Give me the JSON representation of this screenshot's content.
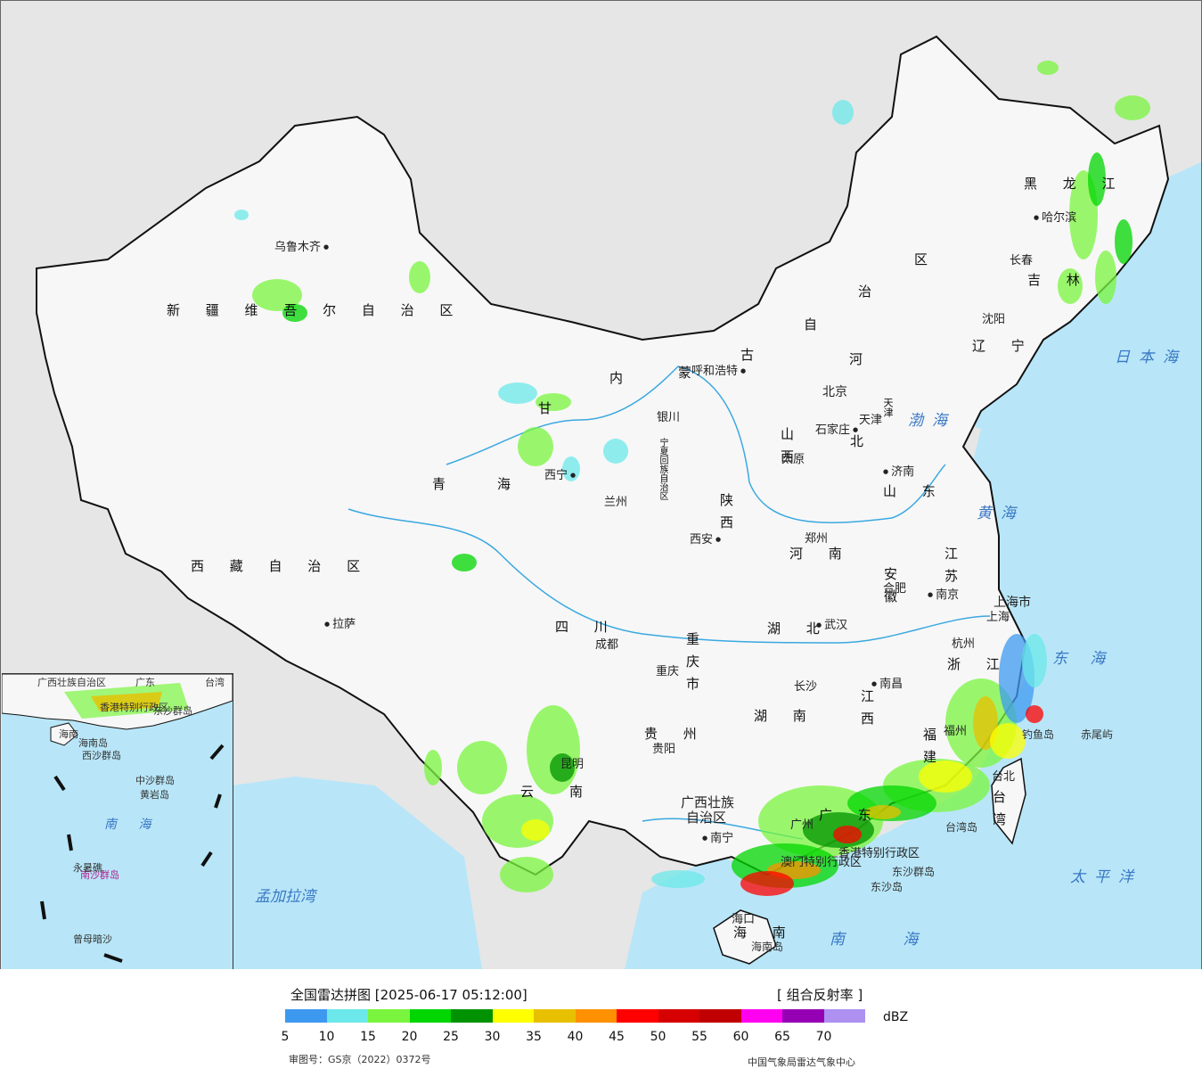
{
  "legend": {
    "title": "全国雷达拼图 [2025-06-17 05:12:00]",
    "product": "[ 组合反射率 ]",
    "unit": "dBZ",
    "scale": [
      {
        "value": "5",
        "color": "#3d99f0"
      },
      {
        "value": "10",
        "color": "#6ce8ea"
      },
      {
        "value": "15",
        "color": "#7af53e"
      },
      {
        "value": "20",
        "color": "#00d600"
      },
      {
        "value": "25",
        "color": "#009200"
      },
      {
        "value": "30",
        "color": "#ffff00"
      },
      {
        "value": "35",
        "color": "#e8c000"
      },
      {
        "value": "40",
        "color": "#ff9000"
      },
      {
        "value": "45",
        "color": "#ff0000"
      },
      {
        "value": "50",
        "color": "#d60000"
      },
      {
        "value": "55",
        "color": "#c00000"
      },
      {
        "value": "60",
        "color": "#ff00f0"
      },
      {
        "value": "65",
        "color": "#9600b4"
      },
      {
        "value": "70",
        "color": "#ad90f0"
      }
    ],
    "approval_no": "审图号：GS京（2022）0372号",
    "producer": "中国气象局雷达气象中心"
  },
  "map": {
    "colors": {
      "land_outside": "#e6e6e6",
      "china_land": "#f7f7f7",
      "sea": "#b8e6f8",
      "border": "#111111",
      "river": "#3aa8e0"
    },
    "regions": {
      "xinjiang": "新 疆 维 吾 尔 自 治 区",
      "xizang": "西 藏 自 治 区",
      "qinghai_a": "青",
      "qinghai_b": "海",
      "gansu": "甘",
      "neimenggu_1": "内",
      "neimenggu_2": "蒙",
      "neimenggu_3": "古",
      "neimenggu_4": "自",
      "neimenggu_5": "治",
      "neimenggu_6": "区",
      "heilongjiang": "黑 龙 江",
      "jilin": "吉 林",
      "liaoning": "辽 宁",
      "hebei_a": "河",
      "hebei_b": "北",
      "shanxi": "山西",
      "shaanxi": "陕西",
      "shandong": "山 东",
      "henan": "河 南",
      "jiangsu": "江苏",
      "anhui": "安徽",
      "sichuan": "四 川",
      "chongqing": "重庆市",
      "hubei": "湖 北",
      "hunan": "湖 南",
      "jiangxi": "江西",
      "zhejiang": "浙 江",
      "fujian": "福建",
      "guizhou": "贵 州",
      "yunnan": "云南",
      "guangxi_1": "广西壮族",
      "guangxi_2": "自治区",
      "guangdong": "广 东",
      "hainan": "海 南",
      "taiwan": "台湾",
      "shanghai": "上海市",
      "tianjin": "天津",
      "ningxia": "宁夏回族自治区"
    },
    "cities": {
      "urumqi": "乌鲁木齐",
      "lhasa": "拉萨",
      "xining": "西宁",
      "lanzhou": "兰州",
      "yinchuan": "银川",
      "hohhot": "呼和浩特",
      "beijing": "北京",
      "tianjin": "天津",
      "shijiazhuang": "石家庄",
      "taiyuan": "太原",
      "jinan": "济南",
      "xian": "西安",
      "zhengzhou": "郑州",
      "hefei": "合肥",
      "nanjing": "南京",
      "shanghai": "上海",
      "hangzhou": "杭州",
      "wuhan": "武汉",
      "chengdu": "成都",
      "chongqing": "重庆",
      "changsha": "长沙",
      "nanchang": "南昌",
      "fuzhou": "福州",
      "guiyang": "贵阳",
      "kunming": "昆明",
      "nanning": "南宁",
      "guangzhou": "广州",
      "haikou": "海口",
      "taibei": "台北",
      "harbin": "哈尔滨",
      "changchun": "长春",
      "shenyang": "沈阳",
      "hongkong": "香港特别行政区",
      "macau": "澳门特别行政区"
    },
    "seas": {
      "japan_sea": "日本海",
      "bohai": "渤海",
      "yellow_sea": "黄海",
      "east_sea": "东 海",
      "pacific": "太平洋",
      "south_sea": "南 海",
      "bengal": "孟加拉湾"
    },
    "islands": {
      "diaoyu": "钓鱼岛",
      "chiwei": "赤尾屿",
      "taiwan_island": "台湾岛",
      "dongsha_islands": "东沙群岛",
      "dongsha": "东沙岛",
      "hainan_island": "海南岛"
    }
  },
  "inset": {
    "labels": {
      "guangxi": "广西壮族自治区",
      "guangdong": "广东",
      "taiwan": "台湾",
      "hk": "香港特别行政区",
      "dongsha": "东沙群岛",
      "hainan_1": "海南",
      "hainan_2": "海南岛",
      "xisha": "西沙群岛",
      "zhongsha": "中沙群岛",
      "huangyan": "黄岩岛",
      "south_sea": "南 海",
      "nansha": "南沙群岛",
      "yongshu": "永暑礁",
      "zengmu": "曾母暗沙"
    }
  }
}
